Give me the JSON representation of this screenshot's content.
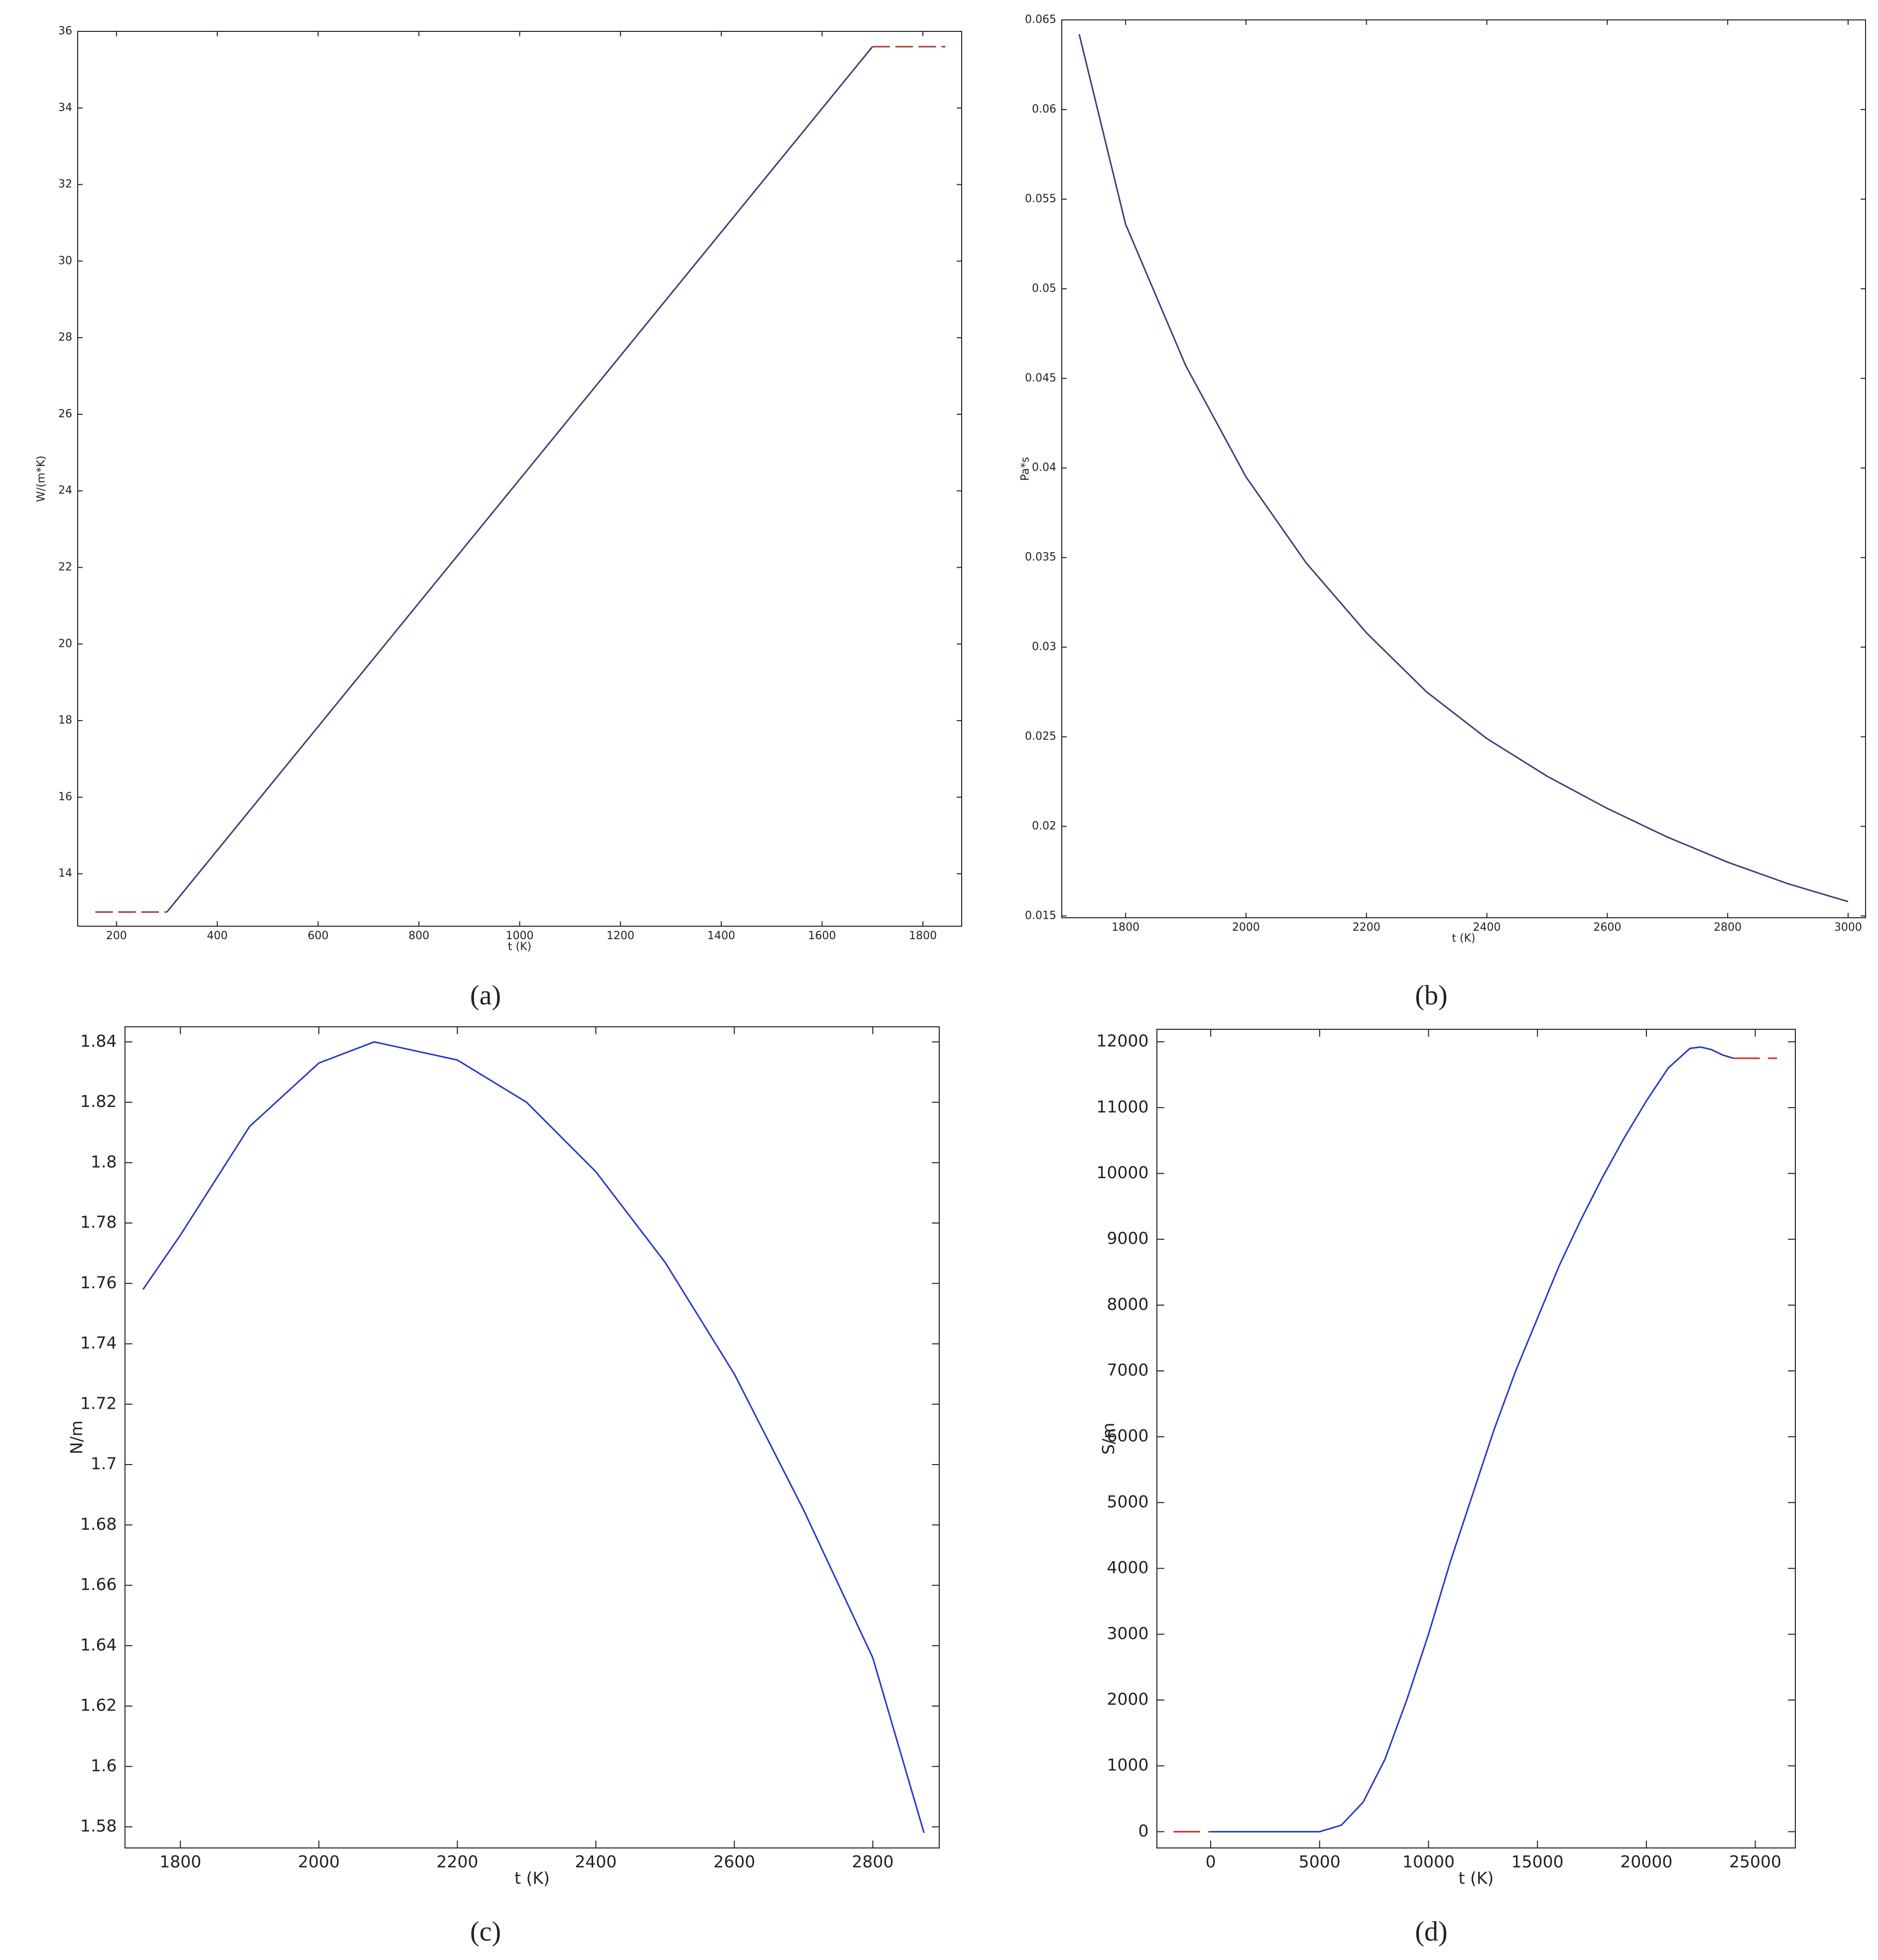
{
  "chart_data": [
    {
      "type": "line",
      "caption": "(a)",
      "xlabel": "t (K)",
      "ylabel": "W/(m*K)",
      "xlim": [
        123,
        1877
      ],
      "ylim": [
        12.63,
        36
      ],
      "xticks": [
        200,
        400,
        600,
        800,
        1000,
        1200,
        1400,
        1600,
        1800
      ],
      "yticks": [
        14,
        16,
        18,
        20,
        22,
        24,
        26,
        28,
        30,
        32,
        34,
        36
      ],
      "series": [
        {
          "color": "#3a3f78",
          "dashed": false,
          "x": [
            300,
            1700
          ],
          "values": [
            13,
            35.6
          ]
        },
        {
          "color": "#a83a3a",
          "dashed": true,
          "x": [
            158,
            300
          ],
          "values": [
            13,
            13
          ]
        },
        {
          "color": "#a83a3a",
          "dashed": true,
          "x": [
            1700,
            1845
          ],
          "values": [
            35.6,
            35.6
          ]
        }
      ]
    },
    {
      "type": "line",
      "caption": "(b)",
      "xlabel": "t (K)",
      "ylabel": "Pa*s",
      "xlim": [
        1694,
        3029
      ],
      "ylim": [
        0.0149,
        0.065
      ],
      "xticks": [
        1800,
        2000,
        2200,
        2400,
        2600,
        2800,
        3000
      ],
      "yticks": [
        0.015,
        0.02,
        0.025,
        0.03,
        0.035,
        0.04,
        0.045,
        0.05,
        0.055,
        0.06,
        0.065
      ],
      "series": [
        {
          "color": "#3a3f78",
          "dashed": false,
          "x": [
            1723,
            1800,
            1900,
            2000,
            2100,
            2200,
            2300,
            2400,
            2500,
            2600,
            2700,
            2800,
            2900,
            3000
          ],
          "values": [
            0.0642,
            0.0536,
            0.0457,
            0.0395,
            0.0347,
            0.0308,
            0.0275,
            0.0249,
            0.0228,
            0.021,
            0.0194,
            0.018,
            0.0168,
            0.0158
          ]
        }
      ]
    },
    {
      "type": "line",
      "caption": "(c)",
      "xlabel": "t (K)",
      "ylabel": "N/m",
      "xlim": [
        1720,
        2896
      ],
      "ylim": [
        1.573,
        1.845
      ],
      "xticks": [
        1800,
        2000,
        2200,
        2400,
        2600,
        2800
      ],
      "yticks": [
        1.58,
        1.6,
        1.62,
        1.64,
        1.66,
        1.68,
        1.7,
        1.72,
        1.74,
        1.76,
        1.78,
        1.8,
        1.82,
        1.84
      ],
      "series": [
        {
          "color": "#2436c8",
          "dashed": false,
          "x": [
            1746,
            1800,
            1900,
            2000,
            2080,
            2200,
            2300,
            2400,
            2500,
            2600,
            2700,
            2800,
            2874
          ],
          "values": [
            1.758,
            1.776,
            1.812,
            1.833,
            1.84,
            1.834,
            1.82,
            1.797,
            1.767,
            1.73,
            1.685,
            1.636,
            1.578
          ]
        }
      ]
    },
    {
      "type": "line",
      "caption": "(d)",
      "xlabel": "t (K)",
      "ylabel": "S/m",
      "xlim": [
        -2471,
        26839
      ],
      "ylim": [
        -247,
        12190
      ],
      "xticks": [
        0,
        5000,
        10000,
        15000,
        20000,
        25000
      ],
      "yticks": [
        0,
        1000,
        2000,
        3000,
        4000,
        5000,
        6000,
        7000,
        8000,
        9000,
        10000,
        11000,
        12000
      ],
      "series": [
        {
          "color": "#2436c8",
          "dashed": false,
          "x": [
            0,
            5000,
            6000,
            7000,
            8000,
            9000,
            10000,
            11000,
            12000,
            13000,
            14000,
            15000,
            16000,
            17000,
            18000,
            19000,
            20000,
            21000,
            22000,
            22500,
            23000,
            23500,
            24000
          ],
          "values": [
            0,
            0,
            100,
            450,
            1100,
            2000,
            3000,
            4100,
            5100,
            6100,
            7000,
            7800,
            8600,
            9300,
            9950,
            10550,
            11100,
            11600,
            11900,
            11920,
            11880,
            11800,
            11750
          ]
        },
        {
          "color": "#e02020",
          "dashed": true,
          "x": [
            -1700,
            0
          ],
          "values": [
            0,
            0
          ]
        },
        {
          "color": "#e02020",
          "dashed": true,
          "x": [
            24000,
            26000
          ],
          "values": [
            11750,
            11750
          ]
        }
      ]
    }
  ]
}
